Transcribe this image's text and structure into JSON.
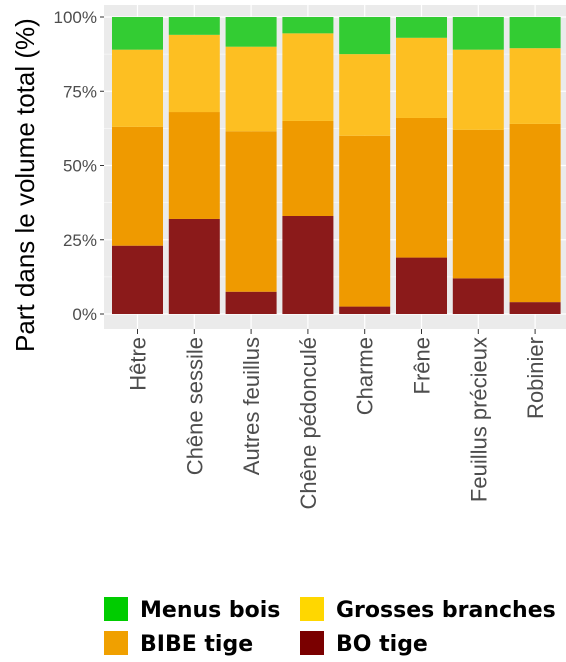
{
  "chart_data": {
    "type": "bar",
    "stacked": true,
    "percent": true,
    "title": "",
    "xlabel": "",
    "ylabel": "Part dans le volume total (%)",
    "ylim": [
      0,
      100
    ],
    "yticks": [
      "0%",
      "25%",
      "50%",
      "75%",
      "100%"
    ],
    "categories": [
      "Hêtre",
      "Chêne sessile",
      "Autres feuillus",
      "Chêne pédonculé",
      "Charme",
      "Frêne",
      "Feuillus précieux",
      "Robinier"
    ],
    "series": [
      {
        "name": "BO tige",
        "color": "#8b1a1a",
        "values": [
          23,
          32,
          7.5,
          33,
          2.5,
          19,
          12,
          4
        ]
      },
      {
        "name": "BIBE tige",
        "color": "#ef9a00",
        "values": [
          40,
          36,
          54,
          32,
          57.5,
          47,
          50,
          60
        ]
      },
      {
        "name": "Grosses branches",
        "color": "#fdbf22",
        "values": [
          26,
          26,
          28.5,
          29.5,
          27.5,
          27,
          27,
          25.5
        ]
      },
      {
        "name": "Menus bois",
        "color": "#33cc33",
        "values": [
          11,
          6,
          10,
          5.5,
          12.5,
          7,
          11,
          10.5
        ]
      }
    ],
    "grid": true,
    "legend_position": "bottom",
    "legend": [
      {
        "label": "Menus bois",
        "color": "#00cc00"
      },
      {
        "label": "Grosses branches",
        "color": "#ffd700"
      },
      {
        "label": "BIBE tige",
        "color": "#f0a000"
      },
      {
        "label": "BO tige",
        "color": "#7a0000"
      }
    ],
    "panel_background": "#ebebeb"
  }
}
